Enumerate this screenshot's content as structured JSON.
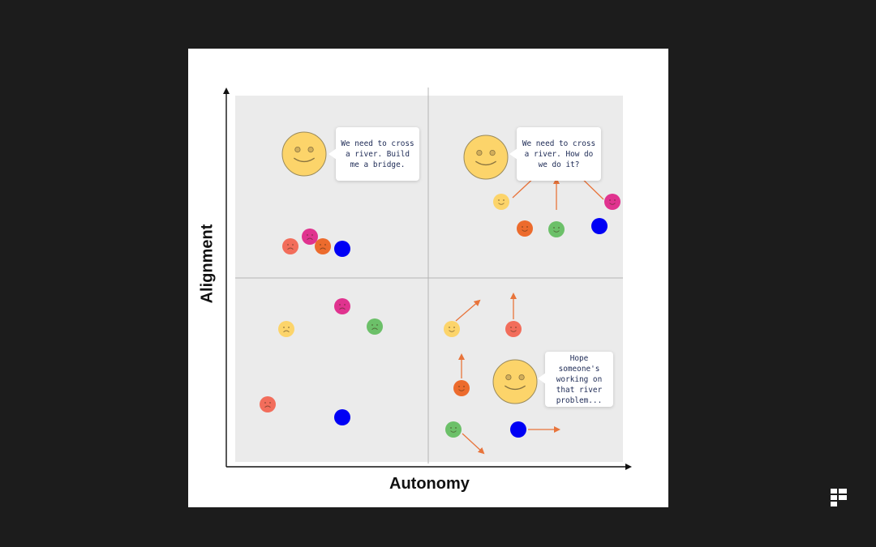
{
  "axes": {
    "x_label": "Autonomy",
    "y_label": "Alignment"
  },
  "bubbles": {
    "top_left": "We need to cross a river. Build me a bridge.",
    "top_right": "We need to cross a river. How do we do it?",
    "bottom_right": "Hope someone's working on that river problem..."
  },
  "colors": {
    "background": "#1c1c1c",
    "card": "#ffffff",
    "quadrant_fill": "#ebebeb",
    "arrow": "#e8743b",
    "leader_face": "#fcd46a",
    "yellow": "#fcd46a",
    "salmon": "#f26d5b",
    "magenta": "#e0338f",
    "orange": "#ec6b2d",
    "green": "#6cc069",
    "blue": "#0000f5"
  },
  "quadrants": {
    "top_left": {
      "team_mood": "sad",
      "arrows": false
    },
    "top_right": {
      "team_mood": "happy",
      "arrows": true,
      "arrows_converge": true
    },
    "bottom_left": {
      "team_mood": "sad",
      "arrows": false
    },
    "bottom_right": {
      "team_mood": "happy",
      "arrows": true,
      "arrows_converge": false
    }
  },
  "icons": [
    "leader-smiley-icon",
    "team-member-face-icon",
    "arrow-icon",
    "brand-logo-icon"
  ]
}
